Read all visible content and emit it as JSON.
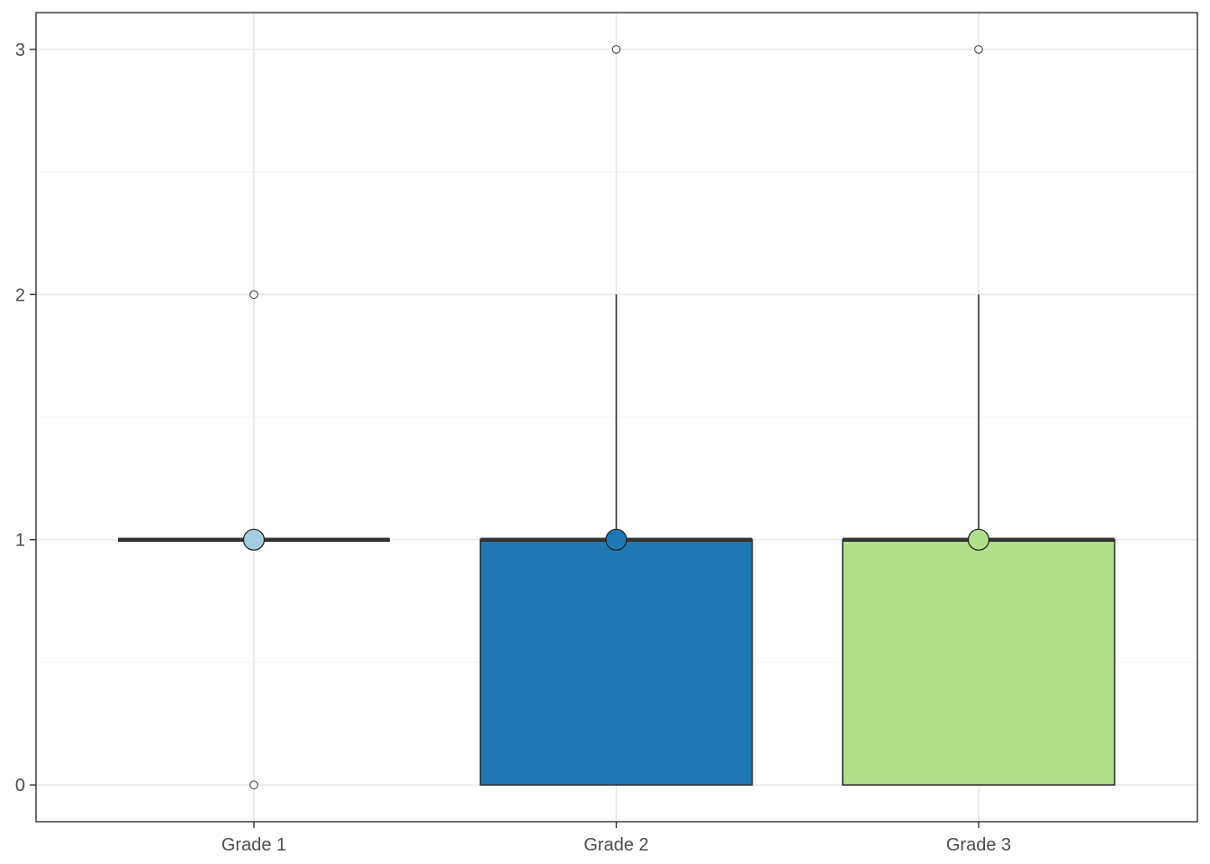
{
  "chart_data": {
    "type": "boxplot",
    "categories": [
      "Grade 1",
      "Grade 2",
      "Grade 3"
    ],
    "ylim": [
      -0.15,
      3.15
    ],
    "yticks": [
      0,
      1,
      2,
      3
    ],
    "ytick_labels": [
      "0",
      "1",
      "2",
      "3"
    ],
    "grid": true,
    "boxes": [
      {
        "category": "Grade 1",
        "q1": 1,
        "median": 1,
        "q3": 1,
        "whisker_low": 1,
        "whisker_high": 1,
        "mean": 1,
        "outliers": [
          0,
          2
        ],
        "color": "#a6cee3"
      },
      {
        "category": "Grade 2",
        "q1": 0,
        "median": 1,
        "q3": 1,
        "whisker_low": 0,
        "whisker_high": 2,
        "mean": 1,
        "outliers": [
          3
        ],
        "color": "#1f78b4"
      },
      {
        "category": "Grade 3",
        "q1": 0,
        "median": 1,
        "q3": 1,
        "whisker_low": 0,
        "whisker_high": 2,
        "mean": 1,
        "outliers": [
          3
        ],
        "color": "#b2df8a"
      }
    ]
  }
}
